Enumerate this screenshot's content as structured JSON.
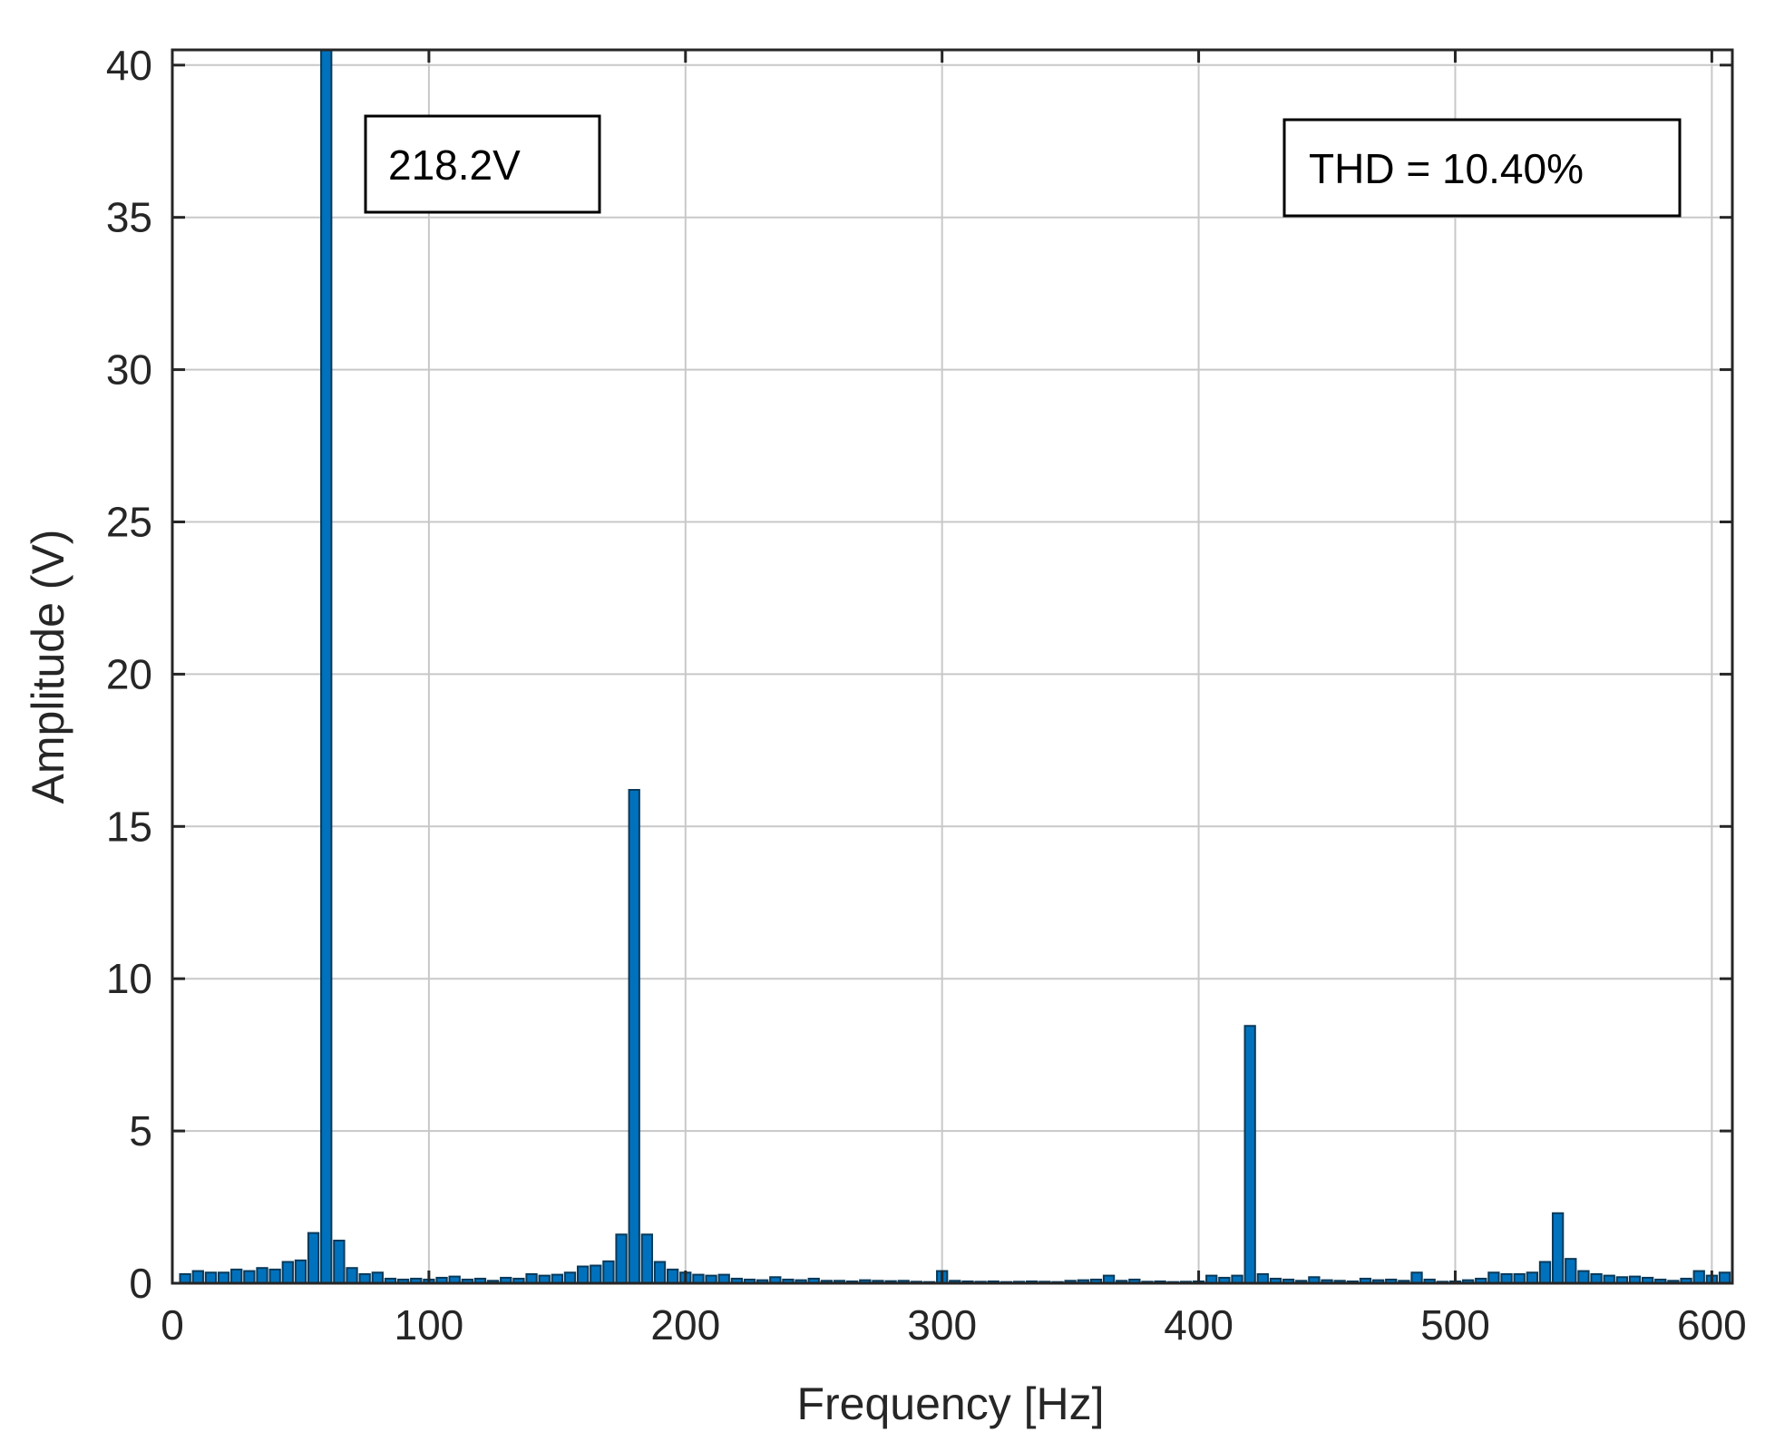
{
  "chart_data": {
    "type": "bar",
    "xlabel": "Frequency [Hz]",
    "ylabel": "Amplitude (V)",
    "xlim": [
      0,
      608
    ],
    "ylim": [
      0,
      40.5
    ],
    "xticks": [
      0,
      100,
      200,
      300,
      400,
      500,
      600
    ],
    "yticks": [
      0,
      5,
      10,
      15,
      20,
      25,
      30,
      35,
      40
    ],
    "grid": true,
    "bar_width_hz": 4,
    "colors": {
      "bar_fill": "#0072BD",
      "bar_edge": "#0a3a5a",
      "grid": "#c8c8c8",
      "axis": "#262626"
    },
    "x": [
      5,
      10,
      15,
      20,
      25,
      30,
      35,
      40,
      45,
      50,
      55,
      60,
      65,
      70,
      75,
      80,
      85,
      90,
      95,
      100,
      105,
      110,
      115,
      120,
      125,
      130,
      135,
      140,
      145,
      150,
      155,
      160,
      165,
      170,
      175,
      180,
      185,
      190,
      195,
      200,
      205,
      210,
      215,
      220,
      225,
      230,
      235,
      240,
      245,
      250,
      255,
      260,
      265,
      270,
      275,
      280,
      285,
      290,
      295,
      300,
      305,
      310,
      315,
      320,
      325,
      330,
      335,
      340,
      345,
      350,
      355,
      360,
      365,
      370,
      375,
      380,
      385,
      390,
      395,
      400,
      405,
      410,
      415,
      420,
      425,
      430,
      435,
      440,
      445,
      450,
      455,
      460,
      465,
      470,
      475,
      480,
      485,
      490,
      495,
      500,
      505,
      510,
      515,
      520,
      525,
      530,
      535,
      540,
      545,
      550,
      555,
      560,
      565,
      570,
      575,
      580,
      585,
      590,
      595,
      600,
      605
    ],
    "values": [
      0.3,
      0.4,
      0.35,
      0.35,
      0.45,
      0.4,
      0.5,
      0.45,
      0.7,
      0.75,
      1.65,
      40.5,
      1.4,
      0.5,
      0.3,
      0.35,
      0.15,
      0.12,
      0.15,
      0.12,
      0.18,
      0.22,
      0.12,
      0.15,
      0.08,
      0.18,
      0.15,
      0.3,
      0.25,
      0.28,
      0.35,
      0.55,
      0.58,
      0.72,
      1.6,
      16.2,
      1.6,
      0.7,
      0.45,
      0.35,
      0.28,
      0.25,
      0.28,
      0.15,
      0.12,
      0.1,
      0.2,
      0.12,
      0.1,
      0.15,
      0.08,
      0.08,
      0.06,
      0.1,
      0.08,
      0.07,
      0.08,
      0.05,
      0.04,
      0.4,
      0.08,
      0.06,
      0.05,
      0.06,
      0.04,
      0.05,
      0.06,
      0.05,
      0.04,
      0.08,
      0.1,
      0.12,
      0.25,
      0.08,
      0.12,
      0.05,
      0.06,
      0.04,
      0.05,
      0.06,
      0.25,
      0.18,
      0.25,
      8.45,
      0.3,
      0.15,
      0.12,
      0.08,
      0.2,
      0.1,
      0.08,
      0.06,
      0.15,
      0.1,
      0.12,
      0.08,
      0.35,
      0.12,
      0.05,
      0.06,
      0.1,
      0.15,
      0.35,
      0.3,
      0.3,
      0.35,
      0.7,
      2.3,
      0.8,
      0.4,
      0.3,
      0.25,
      0.2,
      0.22,
      0.18,
      0.12,
      0.08,
      0.15,
      0.4,
      0.25,
      0.35
    ],
    "annotations": [
      {
        "text": "218.2V"
      },
      {
        "text": "THD = 10.40%"
      }
    ]
  }
}
